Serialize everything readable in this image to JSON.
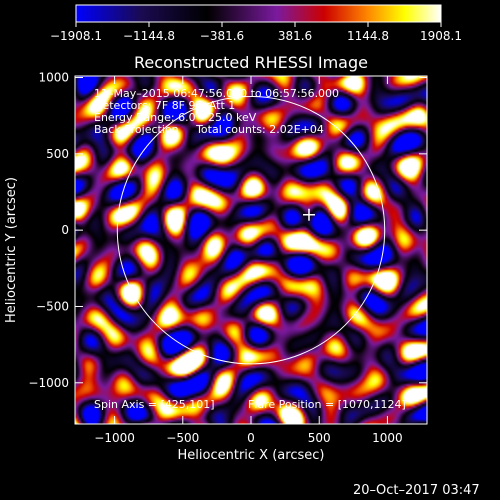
{
  "chart_data": {
    "type": "heatmap",
    "title": "Reconstructed RHESSI Image",
    "xlabel": "Heliocentric X (arcsec)",
    "ylabel": "Heliocentric Y (arcsec)",
    "xlim": [
      -1290,
      1290
    ],
    "ylim": [
      -1270,
      1010
    ],
    "x_ticks": [
      -1000,
      -500,
      0,
      500,
      1000
    ],
    "x_tick_labels": [
      "−1000",
      "−500",
      "0",
      "500",
      "1000"
    ],
    "y_ticks": [
      -1000,
      -500,
      0,
      500,
      1000
    ],
    "y_tick_labels": [
      "−1000",
      "−500",
      "0",
      "500",
      "1000"
    ],
    "grid": false,
    "colorbar": {
      "position": "top",
      "min": -1908.1,
      "max": 1908.1,
      "tick_values": [
        -1908.1,
        -1144.8,
        -381.6,
        381.6,
        1144.8,
        1908.1
      ],
      "tick_labels": [
        "−1908.1",
        "−1144.8",
        "−381.6",
        "381.6",
        "1144.8",
        "1908.1"
      ],
      "colormap": [
        "#0000ff",
        "#1a0a50",
        "#000000",
        "#7a1a9e",
        "#cc0000",
        "#ff8800",
        "#ffff00",
        "#ffffff"
      ]
    },
    "annotations": [
      "11–May–2015 06:47:56.000 to 06:57:56.000",
      "Detectors: 7F 8F 9F, Att 1",
      "Energy Range: 6.0 – 25.0 keV",
      "Back Projection     Total counts: 2.02E+04"
    ],
    "spin_axis_label": "Spin Axis = [425,101]",
    "flare_position_label": "Flare Position = [1070,1124]",
    "solar_limb": {
      "center": [
        0,
        0
      ],
      "radius_arcsec": 980,
      "color": "#ffffff"
    },
    "marker": {
      "x": 425,
      "y": 101,
      "symbol": "+",
      "color": "#ffffff"
    },
    "heatmap_seed": 11052015
  },
  "footer": {
    "timestamp": "20–Oct–2017 03:47"
  }
}
